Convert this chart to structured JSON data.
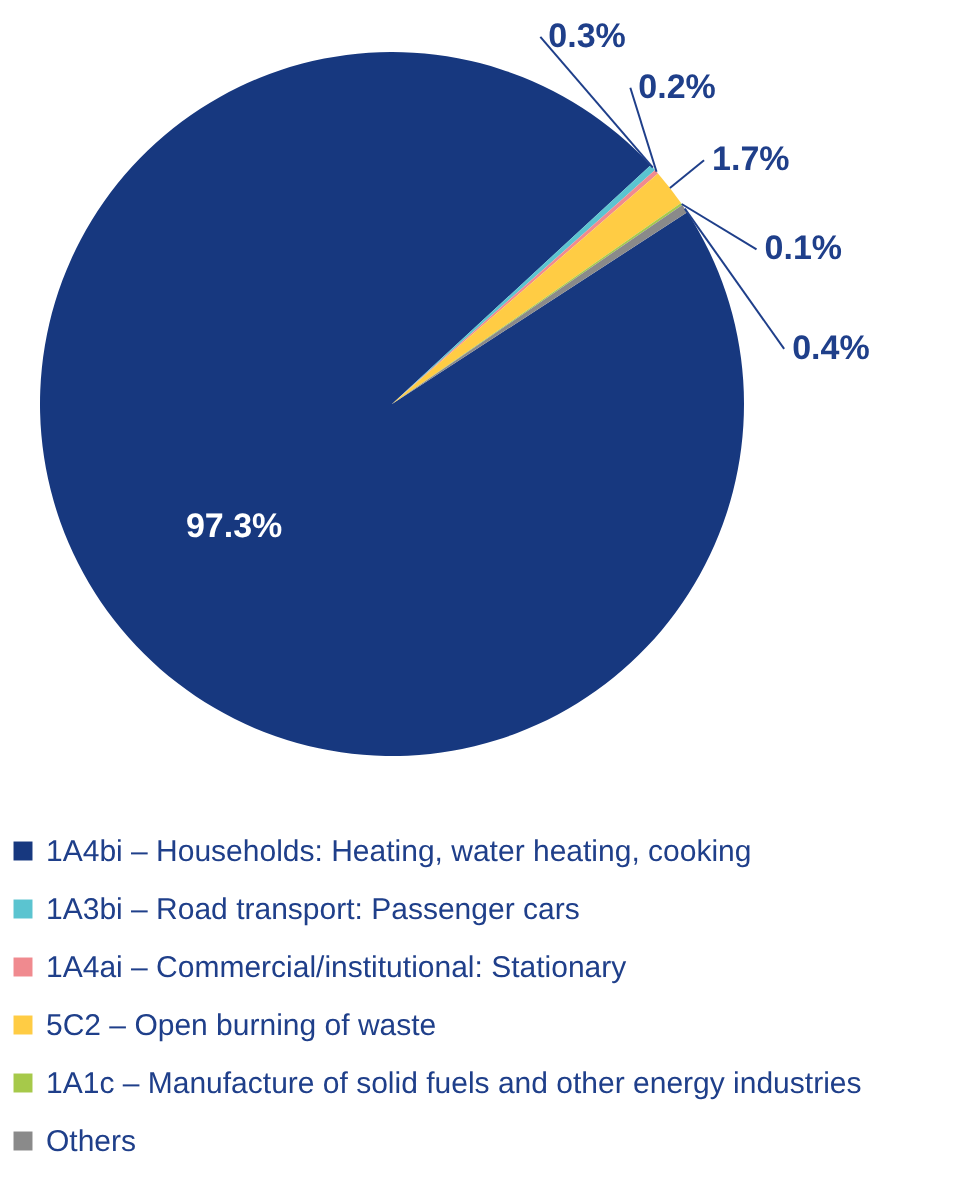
{
  "chart_data": {
    "type": "pie",
    "categories": [
      "1A4bi – Households: Heating, water heating, cooking",
      "1A3bi – Road transport: Passenger cars",
      "1A4ai – Commercial/institutional: Stationary",
      "5C2 –  Open burning of waste",
      "1A1c – Manufacture of solid fuels and other energy industries",
      "Others"
    ],
    "values": [
      97.3,
      0.3,
      0.2,
      1.7,
      0.1,
      0.4
    ],
    "value_labels": [
      "97.3%",
      "0.3%",
      "0.2%",
      "1.7%",
      "0.1%",
      "0.4%"
    ],
    "colors": [
      "#17387f",
      "#5bc4d0",
      "#f08a8f",
      "#ffcc44",
      "#a6c94a",
      "#8a8a8a"
    ],
    "legend": "bottom"
  }
}
